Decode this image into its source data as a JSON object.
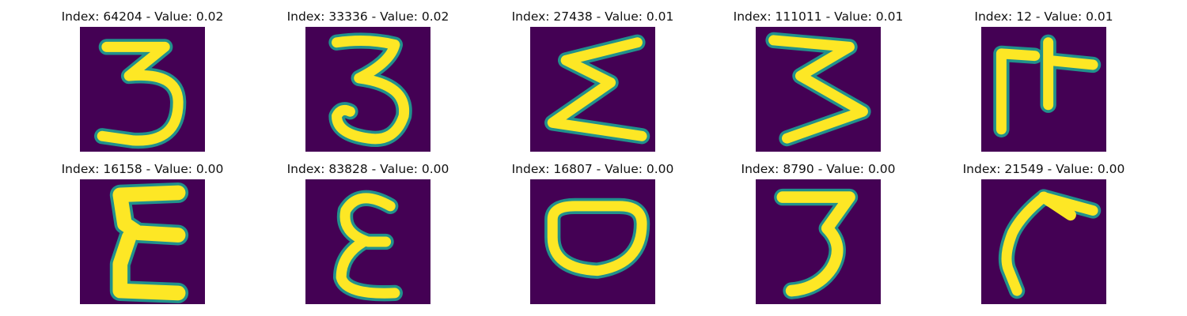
{
  "colors": {
    "background": "#440154",
    "low": "#21918c",
    "high": "#fde725"
  },
  "panels": [
    {
      "title": "Index: 64204 - Value: 0.02",
      "glyph": "digit-3-icon"
    },
    {
      "title": "Index: 33336 - Value: 0.02",
      "glyph": "digit-3-icon"
    },
    {
      "title": "Index: 27438 - Value: 0.01",
      "glyph": "sigma-icon"
    },
    {
      "title": "Index: 111011 - Value: 0.01",
      "glyph": "digit-3-icon"
    },
    {
      "title": "Index: 12 - Value: 0.01",
      "glyph": "glyph-icon"
    },
    {
      "title": "Index: 16158 - Value: 0.00",
      "glyph": "epsilon-icon"
    },
    {
      "title": "Index: 83828 - Value: 0.00",
      "glyph": "epsilon-icon"
    },
    {
      "title": "Index: 16807 - Value: 0.00",
      "glyph": "letter-o-icon"
    },
    {
      "title": "Index: 8790 - Value: 0.00",
      "glyph": "digit-3-icon"
    },
    {
      "title": "Index: 21549 - Value: 0.00",
      "glyph": "glyph-icon"
    }
  ]
}
